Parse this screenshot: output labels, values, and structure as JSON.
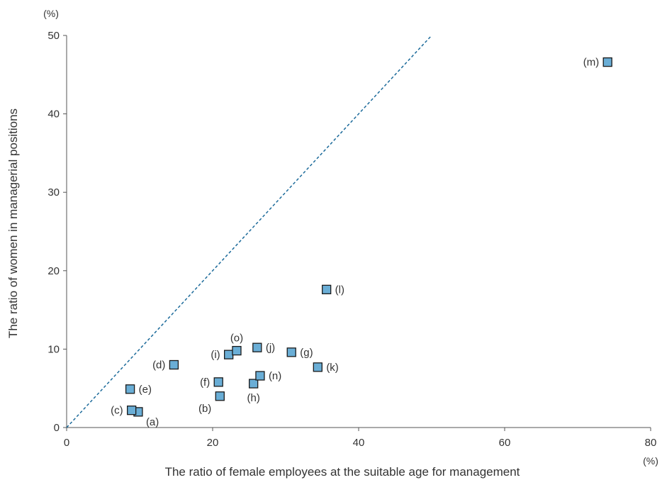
{
  "chart_data": {
    "type": "scatter",
    "xlabel": "The ratio of female employees at the suitable age for management",
    "ylabel": "The ratio of women in managerial positions",
    "x_unit": "(%)",
    "y_unit": "(%)",
    "xlim": [
      0,
      80
    ],
    "ylim": [
      0,
      50
    ],
    "x_ticks": [
      "0",
      "20",
      "40",
      "60",
      "80"
    ],
    "y_ticks": [
      "0",
      "10",
      "20",
      "30",
      "40",
      "50"
    ],
    "grid": false,
    "reference_line": {
      "style": "dashed",
      "from": [
        0,
        0
      ],
      "to": [
        50,
        50
      ]
    },
    "colors": {
      "marker_fill": "#6aaed6",
      "marker_stroke": "#1a1a1a",
      "reference_line": "#1b6a9a",
      "axis": "#555555"
    },
    "points": [
      {
        "label": "(a)",
        "x": 9.8,
        "y": 2.0,
        "label_pos": "below-right"
      },
      {
        "label": "(b)",
        "x": 21.0,
        "y": 4.0,
        "label_pos": "below-left"
      },
      {
        "label": "(c)",
        "x": 8.9,
        "y": 2.2,
        "label_pos": "left"
      },
      {
        "label": "(d)",
        "x": 14.7,
        "y": 8.0,
        "label_pos": "left"
      },
      {
        "label": "(e)",
        "x": 8.7,
        "y": 4.9,
        "label_pos": "right"
      },
      {
        "label": "(f)",
        "x": 20.8,
        "y": 5.8,
        "label_pos": "left"
      },
      {
        "label": "(g)",
        "x": 30.8,
        "y": 9.6,
        "label_pos": "right"
      },
      {
        "label": "(h)",
        "x": 25.6,
        "y": 5.6,
        "label_pos": "below"
      },
      {
        "label": "(i)",
        "x": 22.2,
        "y": 9.3,
        "label_pos": "left"
      },
      {
        "label": "(j)",
        "x": 26.1,
        "y": 10.2,
        "label_pos": "right"
      },
      {
        "label": "(k)",
        "x": 34.4,
        "y": 7.7,
        "label_pos": "right"
      },
      {
        "label": "(l)",
        "x": 35.6,
        "y": 17.6,
        "label_pos": "right"
      },
      {
        "label": "(m)",
        "x": 74.1,
        "y": 46.6,
        "label_pos": "left"
      },
      {
        "label": "(n)",
        "x": 26.5,
        "y": 6.6,
        "label_pos": "right"
      },
      {
        "label": "(o)",
        "x": 23.3,
        "y": 9.8,
        "label_pos": "above"
      }
    ]
  }
}
